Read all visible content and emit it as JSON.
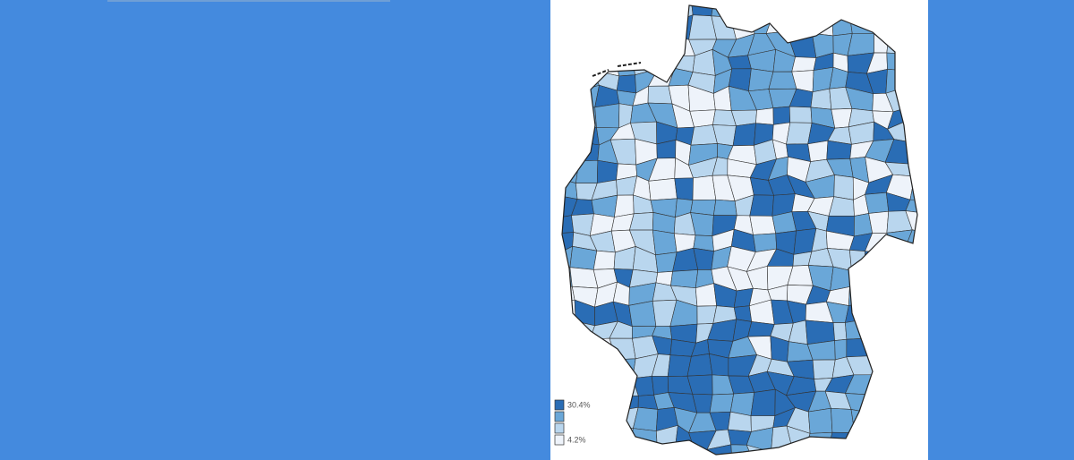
{
  "legend": {
    "items": [
      {
        "label": "30.4%",
        "color": "#2a6db5"
      },
      {
        "color": "#6aa7d8"
      },
      {
        "color": "#b9d6ee"
      },
      {
        "label": "4.2%",
        "color": "#eef3fa"
      }
    ]
  }
}
